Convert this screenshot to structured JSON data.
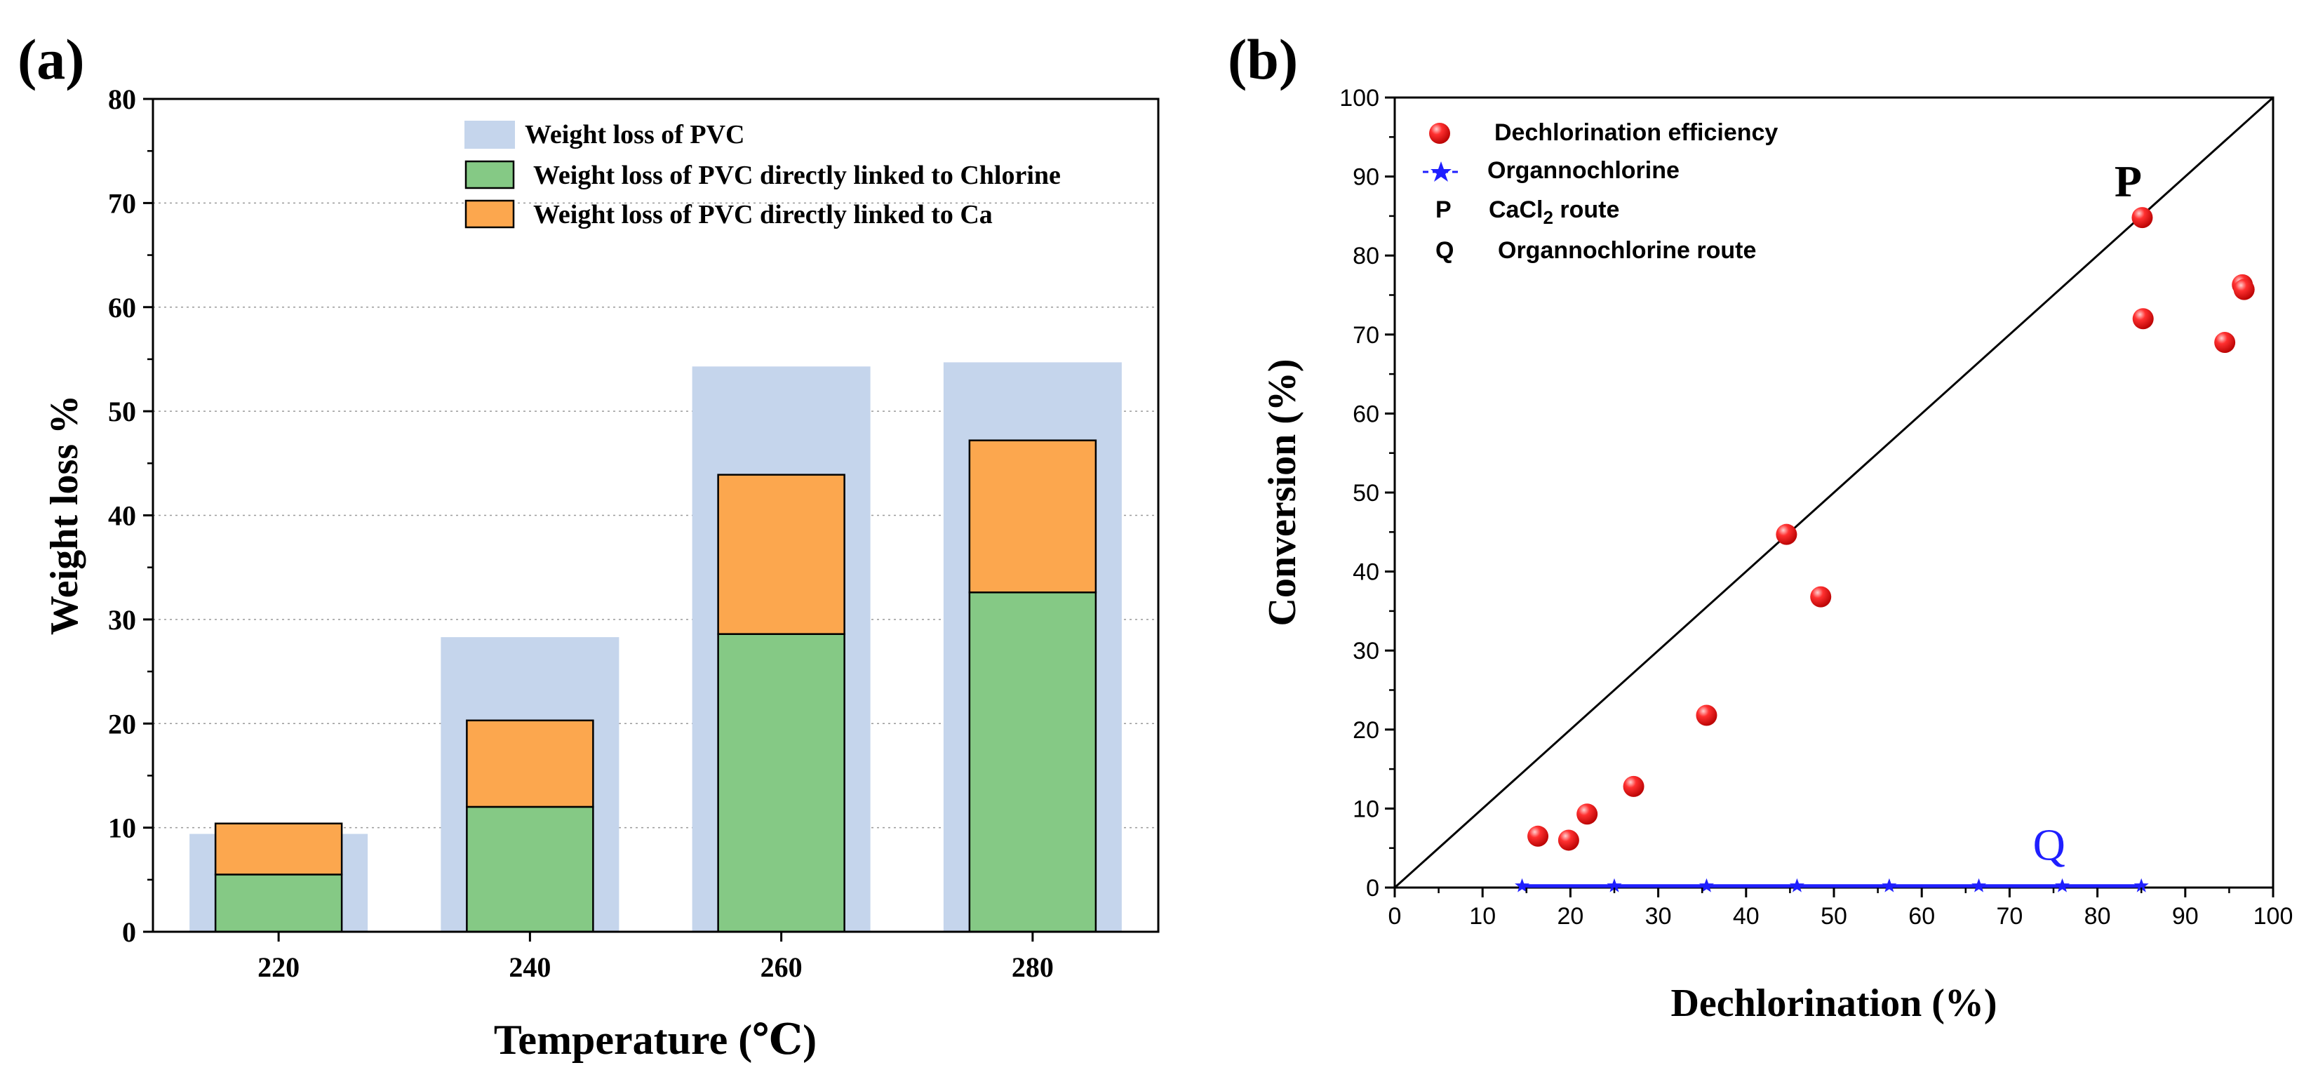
{
  "chart_data": [
    {
      "type": "bar",
      "panel_label": "(a)",
      "title": "",
      "xlabel": "Temperature (℃)",
      "ylabel": "Weight loss %",
      "ylim": [
        0,
        80
      ],
      "yticks": [
        0,
        10,
        20,
        30,
        40,
        50,
        60,
        70,
        80
      ],
      "grid": "horizontal-dotted",
      "legend_position": "top-right",
      "categories": [
        "220",
        "240",
        "260",
        "280"
      ],
      "series": [
        {
          "name": "Weight loss of PVC",
          "color": "#c5d5ec",
          "values": [
            9.4,
            28.3,
            54.3,
            54.7
          ]
        },
        {
          "name": "Weight loss of PVC directly linked to Chlorine",
          "color": "#85c985",
          "stacked": true,
          "values": [
            5.5,
            12.0,
            28.6,
            32.6
          ]
        },
        {
          "name": "Weight loss of PVC directly linked to Ca",
          "color": "#fca74e",
          "stacked": true,
          "values": [
            4.9,
            8.3,
            15.3,
            14.6
          ]
        }
      ]
    },
    {
      "type": "scatter",
      "panel_label": "(b)",
      "title": "",
      "xlabel": "Dechlorination (%)",
      "ylabel": "Conversion (%)",
      "xlim": [
        0,
        100
      ],
      "ylim": [
        0,
        100
      ],
      "xticks": [
        0,
        10,
        20,
        30,
        40,
        50,
        60,
        70,
        80,
        90,
        100
      ],
      "yticks": [
        0,
        10,
        20,
        30,
        40,
        50,
        60,
        70,
        80,
        90,
        100
      ],
      "grid": "none",
      "legend_position": "top-left",
      "reference_line": {
        "from": [
          0,
          0
        ],
        "to": [
          100,
          100
        ]
      },
      "series": [
        {
          "name": "Dechlorination efficiency",
          "marker": "sphere",
          "color": "#e8191a",
          "points": [
            [
              16.3,
              6.5
            ],
            [
              19.8,
              6.0
            ],
            [
              21.9,
              9.3
            ],
            [
              27.2,
              12.8
            ],
            [
              35.5,
              21.8
            ],
            [
              44.6,
              44.7
            ],
            [
              48.5,
              36.8
            ],
            [
              85.1,
              84.8
            ],
            [
              85.2,
              72.0
            ],
            [
              94.5,
              69.0
            ],
            [
              96.5,
              76.3
            ],
            [
              96.7,
              75.7
            ]
          ]
        },
        {
          "name": "Organnochlorine",
          "marker": "star-line",
          "color": "#1f1fff",
          "points": [
            [
              14.5,
              0.2
            ],
            [
              25.0,
              0.2
            ],
            [
              35.5,
              0.2
            ],
            [
              45.8,
              0.2
            ],
            [
              56.3,
              0.2
            ],
            [
              66.5,
              0.2
            ],
            [
              76.0,
              0.2
            ],
            [
              85.0,
              0.2
            ]
          ]
        }
      ],
      "annotations": [
        {
          "id": "P",
          "text": "P",
          "x": 83.5,
          "y": 87.5,
          "color": "#000000"
        },
        {
          "id": "Q",
          "text": "Q",
          "x": 74.5,
          "y": 3.5,
          "color": "#1f1fff"
        }
      ],
      "legend_extra": [
        {
          "key": "P",
          "label": "CaCl",
          "sub": "2",
          "suffix": " route"
        },
        {
          "key": "Q",
          "label": "Organnochlorine route"
        }
      ]
    }
  ]
}
